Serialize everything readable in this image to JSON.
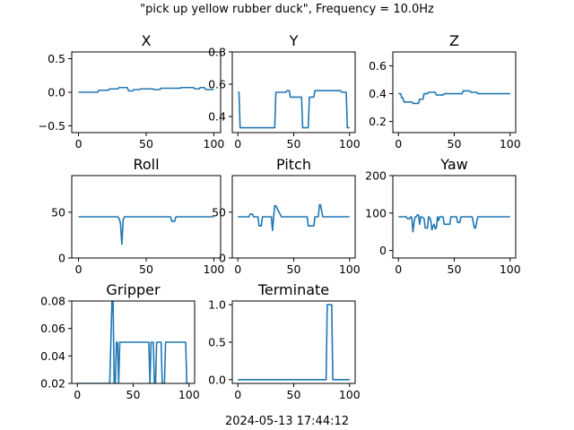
{
  "figure": {
    "suptitle": "\"pick up yellow rubber duck\", Frequency = 10.0Hz",
    "footer": "2024-05-13 17:44:12",
    "line_color": "#1f77b4"
  },
  "chart_data": [
    {
      "type": "line",
      "title": "X",
      "xlim": [
        -5,
        105
      ],
      "ylim": [
        -0.6,
        0.6
      ],
      "xticks": [
        0,
        50,
        100
      ],
      "yticks": [
        -0.5,
        0.0,
        0.5
      ],
      "ytick_labels": [
        "−0.5",
        "0.0",
        "0.5"
      ],
      "series": [
        {
          "x": [
            0,
            14,
            15,
            22,
            23,
            29,
            30,
            36,
            37,
            40,
            41,
            45,
            46,
            55,
            56,
            60,
            61,
            75,
            76,
            85,
            86,
            89,
            90,
            93,
            94,
            100
          ],
          "y": [
            0.0,
            0.0,
            0.03,
            0.03,
            0.05,
            0.05,
            0.07,
            0.07,
            0.02,
            0.02,
            0.04,
            0.04,
            0.05,
            0.05,
            0.04,
            0.04,
            0.06,
            0.06,
            0.07,
            0.07,
            0.05,
            0.05,
            0.07,
            0.07,
            0.04,
            0.04
          ]
        }
      ]
    },
    {
      "type": "line",
      "title": "Y",
      "xlim": [
        -5,
        105
      ],
      "ylim": [
        0.3,
        0.8
      ],
      "xticks": [
        0,
        50,
        100
      ],
      "yticks": [
        0.4,
        0.6,
        0.8
      ],
      "ytick_labels": [
        "0.4",
        "0.6",
        "0.8"
      ],
      "series": [
        {
          "x": [
            0,
            1,
            2,
            3,
            33,
            34,
            43,
            44,
            46,
            47,
            57,
            58,
            59,
            60,
            63,
            64,
            68,
            69,
            92,
            93,
            97,
            98,
            100
          ],
          "y": [
            0.55,
            0.55,
            0.33,
            0.33,
            0.33,
            0.55,
            0.55,
            0.56,
            0.56,
            0.52,
            0.52,
            0.33,
            0.33,
            0.33,
            0.33,
            0.52,
            0.52,
            0.56,
            0.56,
            0.55,
            0.55,
            0.33,
            0.33
          ]
        }
      ]
    },
    {
      "type": "line",
      "title": "Z",
      "xlim": [
        -5,
        105
      ],
      "ylim": [
        0.12,
        0.7
      ],
      "xticks": [
        0,
        50,
        100
      ],
      "yticks": [
        0.2,
        0.4,
        0.6
      ],
      "ytick_labels": [
        "0.2",
        "0.4",
        "0.6"
      ],
      "series": [
        {
          "x": [
            0,
            2,
            3,
            4,
            5,
            12,
            13,
            18,
            19,
            22,
            23,
            26,
            27,
            33,
            34,
            40,
            41,
            57,
            58,
            64,
            65,
            70,
            71,
            100
          ],
          "y": [
            0.4,
            0.4,
            0.37,
            0.37,
            0.34,
            0.34,
            0.33,
            0.33,
            0.36,
            0.36,
            0.4,
            0.4,
            0.41,
            0.41,
            0.39,
            0.39,
            0.4,
            0.4,
            0.42,
            0.42,
            0.41,
            0.41,
            0.4,
            0.4
          ]
        }
      ]
    },
    {
      "type": "line",
      "title": "Roll",
      "xlim": [
        -5,
        105
      ],
      "ylim": [
        0,
        90
      ],
      "xticks": [
        0,
        50,
        100
      ],
      "yticks": [
        0,
        50
      ],
      "ytick_labels": [
        "0",
        "50"
      ],
      "series": [
        {
          "x": [
            0,
            29,
            30,
            31,
            32,
            33,
            34,
            68,
            69,
            70,
            71,
            72,
            100
          ],
          "y": [
            45,
            45,
            43,
            38,
            15,
            42,
            45,
            45,
            40,
            40,
            40,
            45,
            45
          ]
        }
      ]
    },
    {
      "type": "line",
      "title": "Pitch",
      "xlim": [
        -5,
        105
      ],
      "ylim": [
        0,
        90
      ],
      "xticks": [
        0,
        50,
        100
      ],
      "yticks": [
        0,
        50
      ],
      "ytick_labels": [
        "0",
        "50"
      ],
      "series": [
        {
          "x": [
            0,
            10,
            11,
            13,
            14,
            18,
            19,
            21,
            22,
            30,
            31,
            32,
            33,
            34,
            39,
            40,
            62,
            63,
            68,
            69,
            72,
            73,
            74,
            76,
            77,
            100
          ],
          "y": [
            45,
            45,
            48,
            48,
            45,
            45,
            35,
            35,
            45,
            45,
            30,
            45,
            57,
            57,
            45,
            45,
            45,
            35,
            35,
            45,
            45,
            58,
            58,
            45,
            45,
            45
          ]
        }
      ]
    },
    {
      "type": "line",
      "title": "Yaw",
      "xlim": [
        -5,
        105
      ],
      "ylim": [
        -20,
        200
      ],
      "xticks": [
        0,
        50,
        100
      ],
      "yticks": [
        0,
        100,
        200
      ],
      "ytick_labels": [
        "0",
        "100",
        "200"
      ],
      "series": [
        {
          "x": [
            0,
            7,
            8,
            10,
            11,
            12,
            13,
            14,
            15,
            16,
            17,
            18,
            19,
            20,
            21,
            23,
            24,
            26,
            27,
            28,
            29,
            30,
            31,
            32,
            33,
            34,
            35,
            36,
            37,
            40,
            41,
            46,
            47,
            52,
            53,
            55,
            56,
            66,
            67,
            68,
            69,
            70,
            71,
            72,
            100
          ],
          "y": [
            90,
            90,
            85,
            85,
            90,
            88,
            50,
            75,
            90,
            90,
            95,
            95,
            70,
            90,
            90,
            85,
            60,
            60,
            90,
            88,
            80,
            55,
            65,
            70,
            58,
            60,
            90,
            80,
            90,
            90,
            70,
            70,
            90,
            90,
            75,
            75,
            90,
            90,
            75,
            60,
            60,
            75,
            90,
            90,
            90
          ]
        }
      ]
    },
    {
      "type": "line",
      "title": "Gripper",
      "xlim": [
        -5,
        105
      ],
      "ylim": [
        0.02,
        0.08
      ],
      "xticks": [
        0,
        50,
        100
      ],
      "yticks": [
        0.02,
        0.04,
        0.06,
        0.08
      ],
      "ytick_labels": [
        "0.02",
        "0.04",
        "0.06",
        "0.08"
      ],
      "series": [
        {
          "x": [
            0,
            29,
            30,
            31,
            32,
            33,
            34,
            35,
            36,
            37,
            38,
            39,
            40,
            64,
            65,
            66,
            67,
            68,
            69,
            70,
            71,
            72,
            73,
            74,
            75,
            76,
            77,
            78,
            79,
            80,
            84,
            85,
            94,
            95,
            97,
            98,
            100
          ],
          "y": [
            0.02,
            0.02,
            0.05,
            0.08,
            0.08,
            0.02,
            0.02,
            0.05,
            0.05,
            0.02,
            0.05,
            0.05,
            0.05,
            0.05,
            0.02,
            0.05,
            0.05,
            0.05,
            0.02,
            0.02,
            0.05,
            0.05,
            0.05,
            0.05,
            0.05,
            0.02,
            0.02,
            0.02,
            0.05,
            0.05,
            0.05,
            0.05,
            0.05,
            0.05,
            0.05,
            0.02,
            0.02
          ]
        }
      ]
    },
    {
      "type": "line",
      "title": "Terminate",
      "xlim": [
        -5,
        105
      ],
      "ylim": [
        -0.05,
        1.05
      ],
      "xticks": [
        0,
        50,
        100
      ],
      "yticks": [
        0.0,
        0.5,
        1.0
      ],
      "ytick_labels": [
        "0.0",
        "0.5",
        "1.0"
      ],
      "series": [
        {
          "x": [
            0,
            79,
            80,
            84,
            85,
            100
          ],
          "y": [
            0,
            0,
            1,
            1,
            0,
            0
          ]
        }
      ]
    }
  ]
}
